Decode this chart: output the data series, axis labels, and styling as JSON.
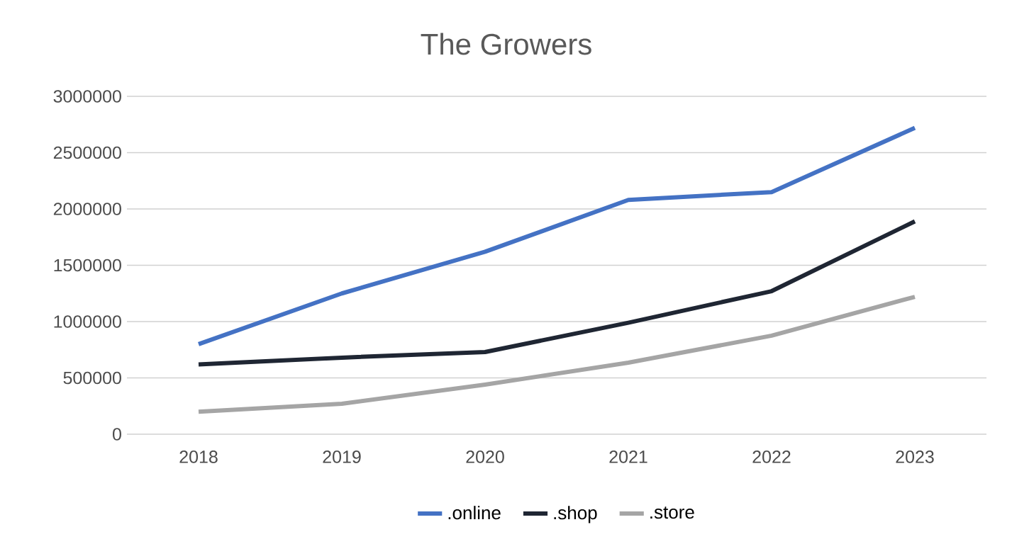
{
  "chart_data": {
    "type": "line",
    "title": "The Growers",
    "categories": [
      "2018",
      "2019",
      "2020",
      "2021",
      "2022",
      "2023"
    ],
    "series": [
      {
        "name": ".online",
        "color": "#4472c4",
        "values": [
          800000,
          1250000,
          1620000,
          2080000,
          2150000,
          2720000
        ]
      },
      {
        "name": ".shop",
        "color": "#1f2633",
        "values": [
          620000,
          680000,
          730000,
          990000,
          1270000,
          1890000
        ]
      },
      {
        "name": ".store",
        "color": "#a5a5a5",
        "values": [
          200000,
          270000,
          440000,
          635000,
          875000,
          1220000
        ]
      }
    ],
    "ylim": [
      0,
      3000000
    ],
    "yticks": [
      0,
      500000,
      1000000,
      1500000,
      2000000,
      2500000,
      3000000
    ],
    "grid": "y",
    "legend": "bottom",
    "marker": "none",
    "line_style": "solid"
  }
}
